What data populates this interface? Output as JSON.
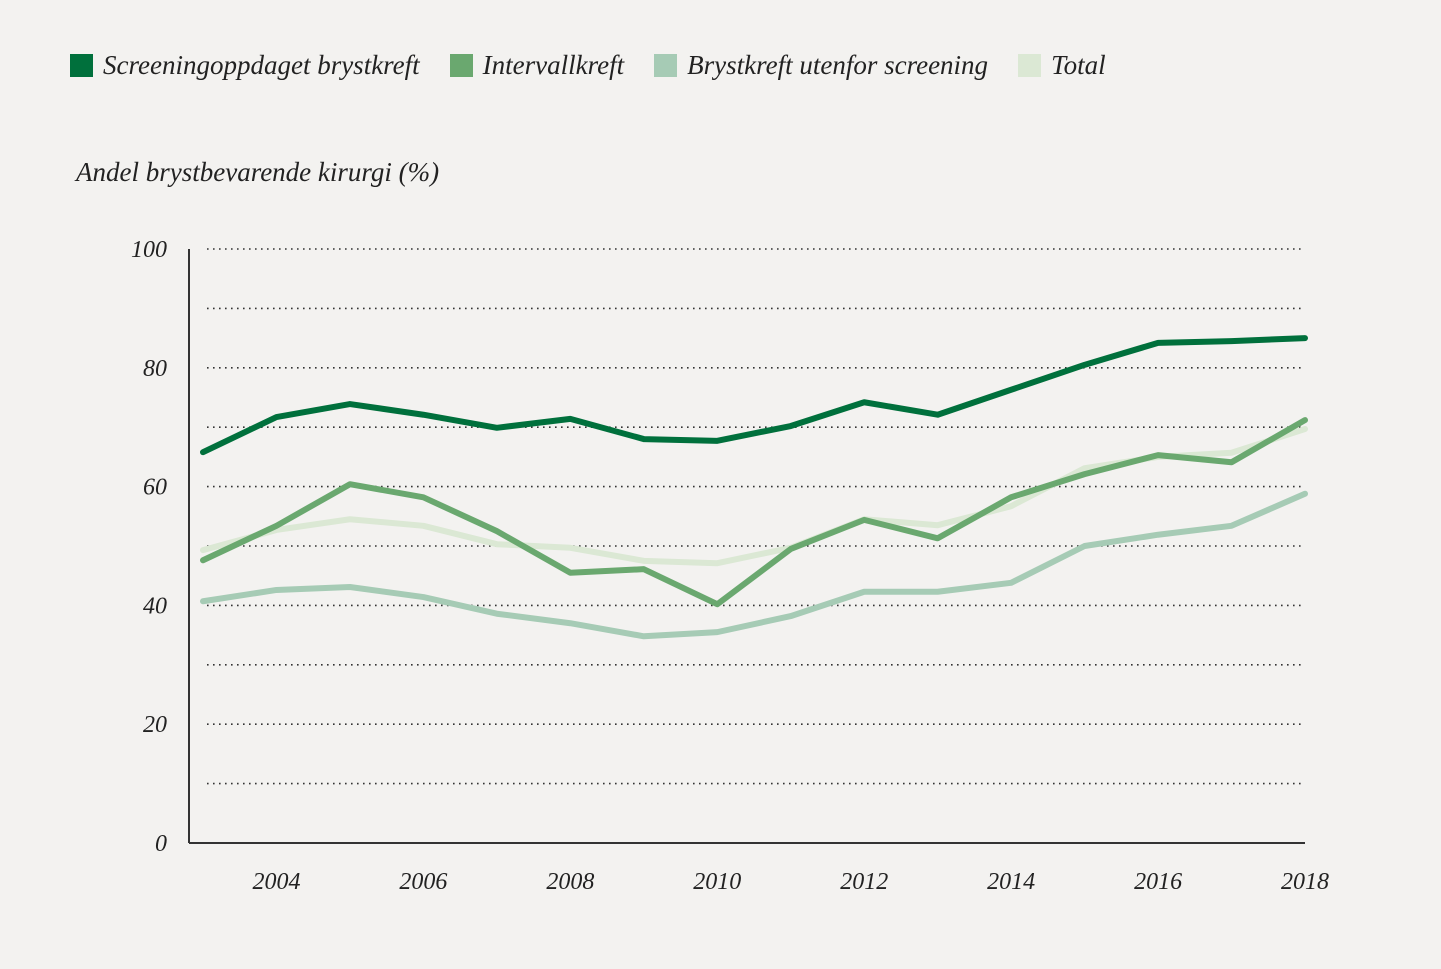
{
  "chart_data": {
    "type": "line",
    "title": "",
    "ylabel": "Andel brystbevarende kirurgi (%)",
    "xlabel": "",
    "ylim": [
      0,
      100
    ],
    "yticks": [
      "0",
      "20",
      "40",
      "60",
      "80",
      "100"
    ],
    "grid": true,
    "grid_step": 10,
    "legend_position": "top",
    "x": [
      2003,
      2004,
      2005,
      2006,
      2007,
      2008,
      2009,
      2010,
      2011,
      2012,
      2013,
      2014,
      2015,
      2016,
      2017,
      2018
    ],
    "xticks": [
      "2004",
      "2006",
      "2008",
      "2010",
      "2012",
      "2014",
      "2016",
      "2018"
    ],
    "series": [
      {
        "name": "Screeningoppdaget brystkreft",
        "color": "#00703c",
        "values": [
          65.8,
          71.7,
          73.9,
          72.1,
          69.9,
          71.4,
          68.0,
          67.7,
          70.2,
          74.2,
          72.1,
          76.3,
          80.5,
          84.2,
          84.5,
          85.0
        ]
      },
      {
        "name": "Intervallkreft",
        "color": "#6aa86f",
        "values": [
          47.6,
          53.4,
          60.4,
          58.2,
          52.5,
          45.5,
          46.1,
          40.2,
          49.5,
          54.4,
          51.3,
          58.2,
          62.1,
          65.3,
          64.1,
          71.2
        ]
      },
      {
        "name": "Brystkreft utenfor screening",
        "color": "#a6cbb5",
        "values": [
          40.7,
          42.6,
          43.1,
          41.4,
          38.6,
          37.0,
          34.8,
          35.5,
          38.2,
          42.3,
          42.3,
          43.8,
          50.0,
          51.9,
          53.4,
          58.8
        ]
      },
      {
        "name": "Total",
        "color": "#dbe8d4",
        "values": [
          49.3,
          52.7,
          54.5,
          53.4,
          50.3,
          49.7,
          47.5,
          47.1,
          49.7,
          54.5,
          53.5,
          56.7,
          63.1,
          65.0,
          65.7,
          69.7
        ]
      }
    ]
  }
}
